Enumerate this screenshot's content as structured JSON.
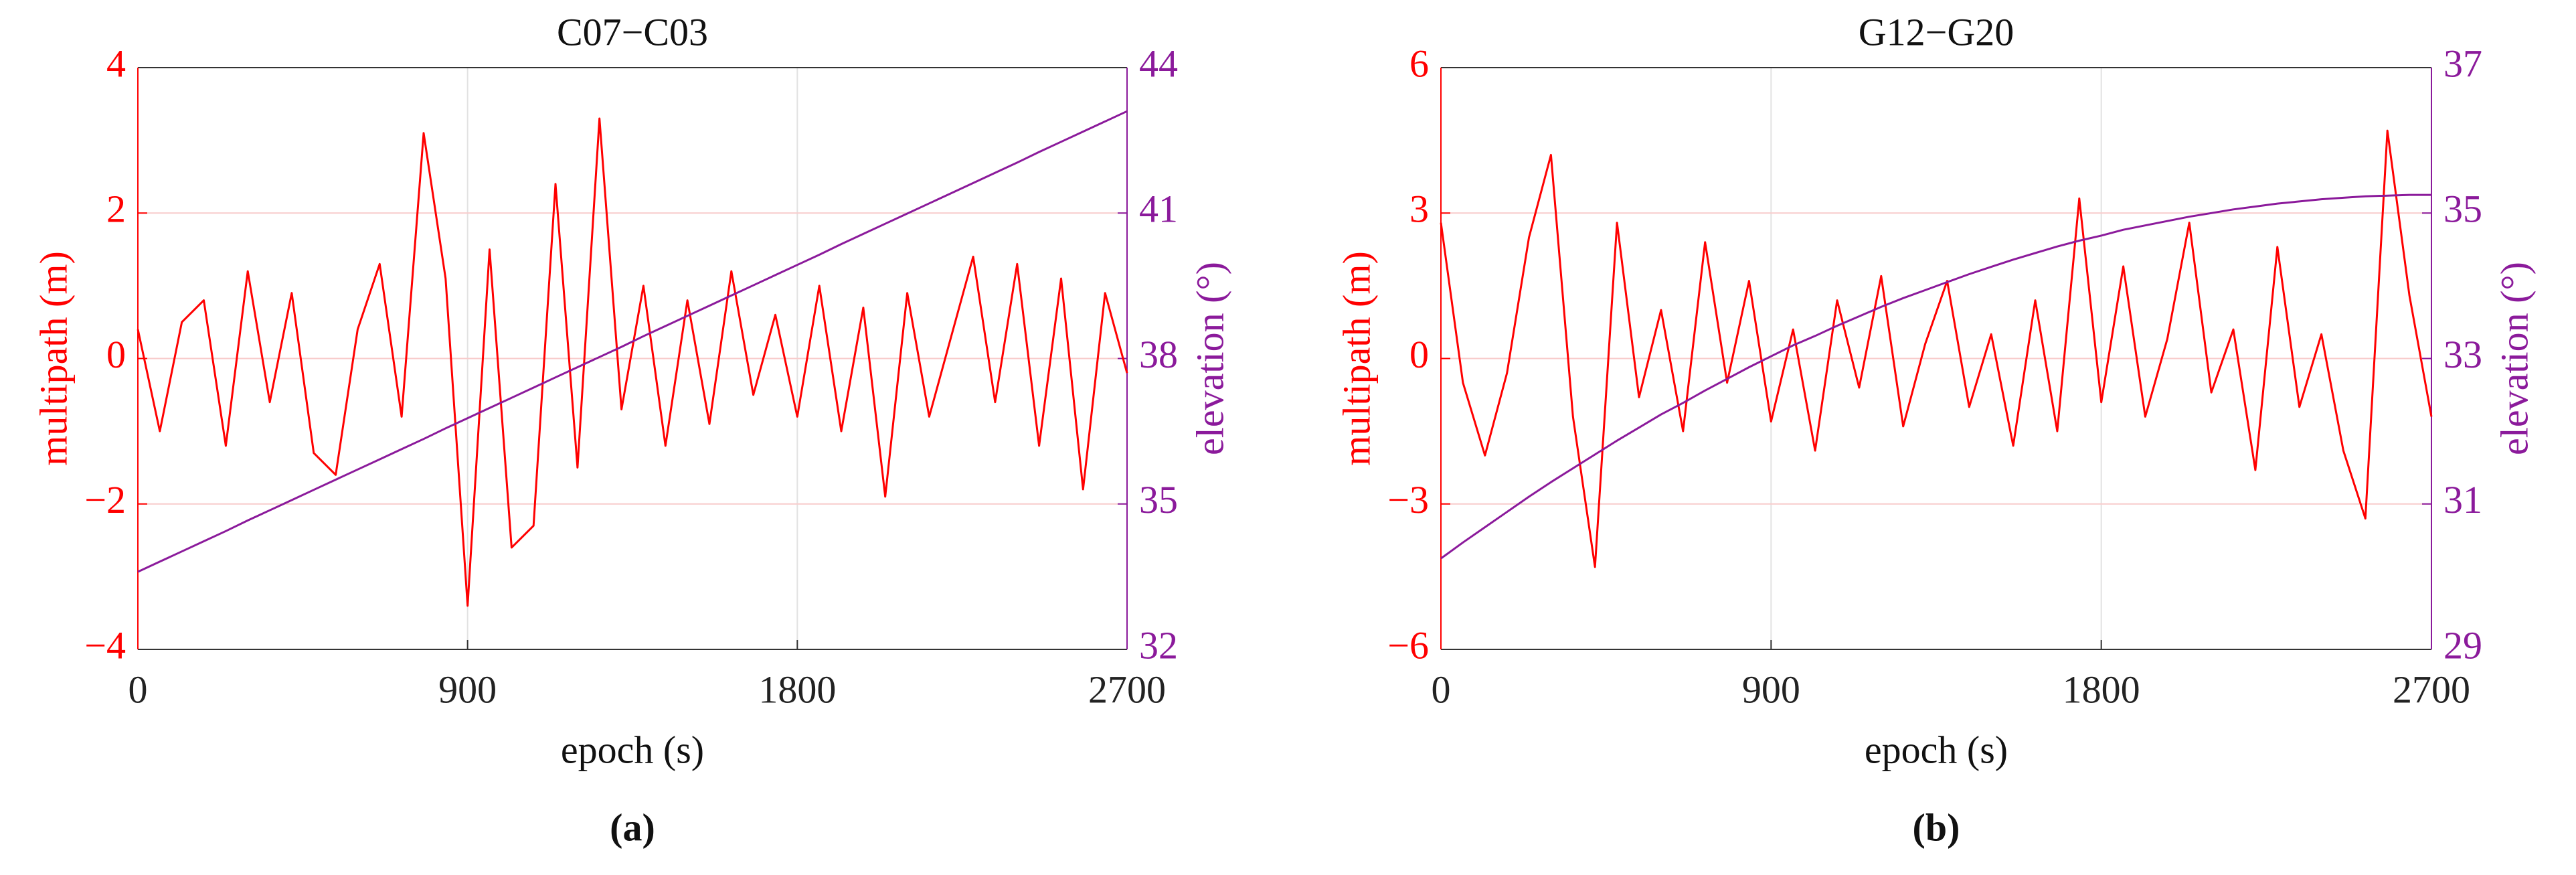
{
  "chart_data": [
    {
      "type": "line",
      "title": "C07−C03",
      "caption": "(a)",
      "xlabel": "epoch (s)",
      "ylabel": "multipath (m)",
      "y2label": "elevation (°)",
      "grid": true,
      "xlim": [
        0,
        2700
      ],
      "xticks": [
        0,
        900,
        1800,
        2700
      ],
      "ylim": [
        -4,
        4
      ],
      "yticks": [
        {
          "value": -4,
          "label": "−4"
        },
        {
          "value": -2,
          "label": "−2"
        },
        0,
        2,
        4
      ],
      "y2lim": [
        32,
        44
      ],
      "y2ticks": [
        32,
        35,
        38,
        41,
        44
      ],
      "x": [
        0,
        60,
        120,
        180,
        240,
        300,
        360,
        420,
        480,
        540,
        600,
        660,
        720,
        780,
        840,
        900,
        960,
        1020,
        1080,
        1140,
        1200,
        1260,
        1320,
        1380,
        1440,
        1500,
        1560,
        1620,
        1680,
        1740,
        1800,
        1860,
        1920,
        1980,
        2040,
        2100,
        2160,
        2220,
        2280,
        2340,
        2400,
        2460,
        2520,
        2580,
        2640,
        2700
      ],
      "series": [
        {
          "color": "#ff0000",
          "values": [
            0.4,
            -1.0,
            0.5,
            0.8,
            -1.2,
            1.2,
            -0.6,
            0.9,
            -1.3,
            -1.6,
            0.4,
            1.3,
            -0.8,
            3.1,
            1.1,
            -3.4,
            1.5,
            -2.6,
            -2.3,
            2.4,
            -1.5,
            3.3,
            -0.7,
            1.0,
            -1.2,
            0.8,
            -0.9,
            1.2,
            -0.5,
            0.6,
            -0.8,
            1.0,
            -1.0,
            0.7,
            -1.9,
            0.9,
            -0.8,
            0.3,
            1.4,
            -0.6,
            1.3,
            -1.2,
            1.1,
            -1.8,
            0.9,
            -0.2
          ]
        },
        {
          "color": "#8b1a9b",
          "axis": "y2",
          "values": [
            33.6,
            33.81,
            34.02,
            34.23,
            34.44,
            34.66,
            34.87,
            35.08,
            35.29,
            35.5,
            35.71,
            35.92,
            36.13,
            36.34,
            36.56,
            36.77,
            36.98,
            37.19,
            37.4,
            37.61,
            37.82,
            38.03,
            38.24,
            38.46,
            38.67,
            38.88,
            39.09,
            39.3,
            39.51,
            39.72,
            39.93,
            40.14,
            40.36,
            40.57,
            40.78,
            40.99,
            41.2,
            41.41,
            41.62,
            41.83,
            42.04,
            42.26,
            42.47,
            42.68,
            42.89,
            43.1
          ]
        }
      ]
    },
    {
      "type": "line",
      "title": "G12−G20",
      "caption": "(b)",
      "xlabel": "epoch (s)",
      "ylabel": "multipath (m)",
      "y2label": "elevation (°)",
      "grid": true,
      "xlim": [
        0,
        2700
      ],
      "xticks": [
        0,
        900,
        1800,
        2700
      ],
      "ylim": [
        -6,
        6
      ],
      "yticks": [
        {
          "value": -6,
          "label": "−6"
        },
        {
          "value": -3,
          "label": "−3"
        },
        0,
        3,
        6
      ],
      "y2lim": [
        29,
        37
      ],
      "y2ticks": [
        29,
        31,
        33,
        35,
        37
      ],
      "x": [
        0,
        60,
        120,
        180,
        240,
        300,
        360,
        420,
        480,
        540,
        600,
        660,
        720,
        780,
        840,
        900,
        960,
        1020,
        1080,
        1140,
        1200,
        1260,
        1320,
        1380,
        1440,
        1500,
        1560,
        1620,
        1680,
        1740,
        1800,
        1860,
        1920,
        1980,
        2040,
        2100,
        2160,
        2220,
        2280,
        2340,
        2400,
        2460,
        2520,
        2580,
        2640,
        2700
      ],
      "series": [
        {
          "color": "#ff0000",
          "values": [
            2.8,
            -0.5,
            -2.0,
            -0.3,
            2.5,
            4.2,
            -1.2,
            -4.3,
            2.8,
            -0.8,
            1.0,
            -1.5,
            2.4,
            -0.5,
            1.6,
            -1.3,
            0.6,
            -1.9,
            1.2,
            -0.6,
            1.7,
            -1.4,
            0.3,
            1.6,
            -1.0,
            0.5,
            -1.8,
            1.2,
            -1.5,
            3.3,
            -0.9,
            1.9,
            -1.2,
            0.4,
            2.8,
            -0.7,
            0.6,
            -2.3,
            2.3,
            -1.0,
            0.5,
            -1.9,
            -3.3,
            4.7,
            1.3,
            -1.2
          ]
        },
        {
          "color": "#8b1a9b",
          "axis": "y2",
          "values": [
            30.25,
            30.47,
            30.68,
            30.89,
            31.1,
            31.3,
            31.49,
            31.68,
            31.87,
            32.05,
            32.23,
            32.39,
            32.56,
            32.72,
            32.88,
            33.03,
            33.18,
            33.31,
            33.45,
            33.58,
            33.71,
            33.83,
            33.94,
            34.05,
            34.16,
            34.26,
            34.36,
            34.45,
            34.54,
            34.62,
            34.69,
            34.77,
            34.83,
            34.89,
            34.95,
            35.0,
            35.05,
            35.09,
            35.13,
            35.16,
            35.19,
            35.21,
            35.23,
            35.24,
            35.25,
            35.25
          ]
        }
      ]
    }
  ]
}
